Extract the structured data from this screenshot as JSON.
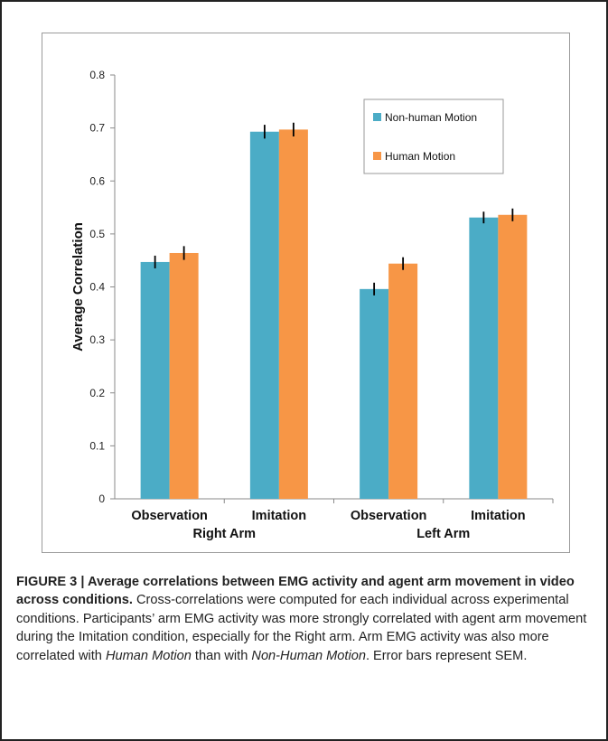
{
  "caption": {
    "label": "FIGURE 3 | Average correlations between EMG activity and agent arm movement in video across conditions.",
    "text_1": " Cross-correlations were computed for each individual across experimental conditions. Participants’ arm EMG activity was more strongly correlated with agent arm movement during the Imitation condition, especially for the Right arm. Arm EMG activity was also more correlated with ",
    "em_1": "Human Motion",
    "text_2": " than with ",
    "em_2": "Non-Human Motion",
    "text_3": ". Error bars represent SEM."
  },
  "chart_data": {
    "type": "bar",
    "ylabel": "Average Correlation",
    "ylim": [
      0,
      0.8
    ],
    "yticks": [
      "0",
      "0.1",
      "0.2",
      "0.3",
      "0.4",
      "0.5",
      "0.6",
      "0.7",
      "0.8"
    ],
    "categories": [
      "Observation",
      "Imitation",
      "Observation",
      "Imitation"
    ],
    "groups": [
      {
        "label": "Right Arm",
        "categories": [
          0,
          1
        ]
      },
      {
        "label": "Left Arm",
        "categories": [
          2,
          3
        ]
      }
    ],
    "series": [
      {
        "name": "Non-human Motion",
        "color": "#4bacc6",
        "values": [
          0.447,
          0.693,
          0.396,
          0.531
        ],
        "errors": [
          0.012,
          0.013,
          0.012,
          0.011
        ]
      },
      {
        "name": "Human Motion",
        "color": "#f79646",
        "values": [
          0.464,
          0.697,
          0.444,
          0.536
        ],
        "errors": [
          0.013,
          0.013,
          0.012,
          0.012
        ]
      }
    ],
    "legend_position": "top-right",
    "grid": false
  }
}
